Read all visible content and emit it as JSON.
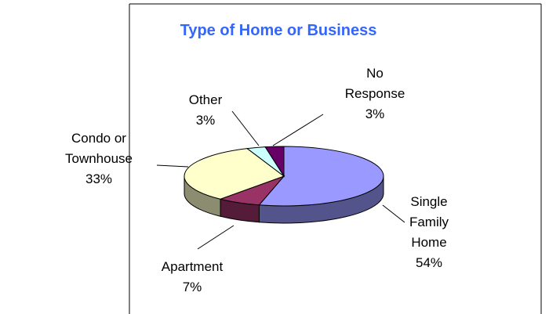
{
  "chart_data": {
    "type": "pie3d",
    "title": "Type of Home or Business",
    "categories": [
      "Single Family Home",
      "Apartment",
      "Condo or Townhouse",
      "Other",
      "No Response"
    ],
    "values": [
      54,
      7,
      33,
      3,
      3
    ],
    "value_labels": [
      "54%",
      "7%",
      "33%",
      "3%",
      "3%"
    ],
    "colors": [
      "#9999ff",
      "#993366",
      "#ffffcc",
      "#ccffff",
      "#660066"
    ]
  }
}
